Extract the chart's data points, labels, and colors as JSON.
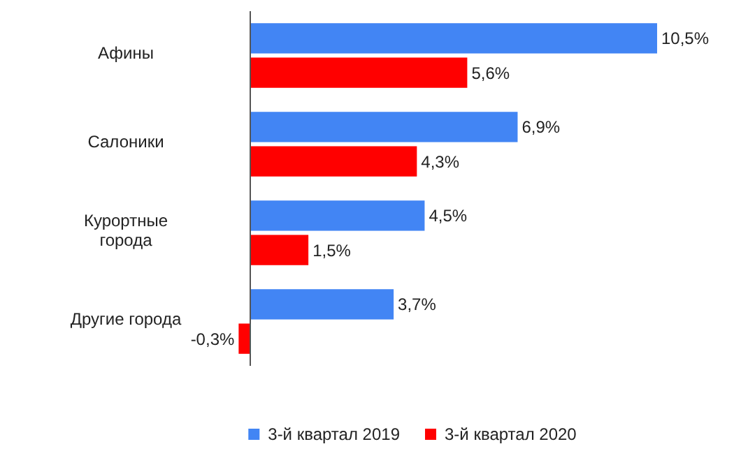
{
  "chart_data": {
    "type": "bar",
    "orientation": "horizontal",
    "categories": [
      "Афины",
      "Салоники",
      "Курортные города",
      "Другие города"
    ],
    "series": [
      {
        "name": "3-й квартал 2019",
        "color": "#4285f4",
        "values": [
          10.5,
          6.9,
          4.5,
          3.7
        ],
        "value_labels": [
          "10,5%",
          "6,9%",
          "4,5%",
          "3,7%"
        ]
      },
      {
        "name": "3-й квартал 2020",
        "color": "#ff0000",
        "values": [
          5.6,
          4.3,
          1.5,
          -0.3
        ],
        "value_labels": [
          "5,6%",
          "4,3%",
          "1,5%",
          "-0,3%"
        ]
      }
    ],
    "legend": "bottom"
  }
}
